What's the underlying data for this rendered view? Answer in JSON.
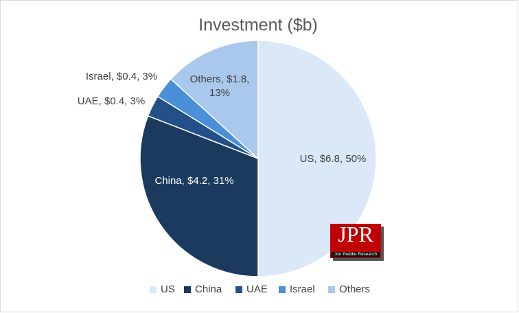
{
  "chart_data": {
    "type": "pie",
    "title": "Investment ($b)",
    "categories": [
      "US",
      "China",
      "UAE",
      "Israel",
      "Others"
    ],
    "values": [
      6.8,
      4.2,
      0.4,
      0.4,
      1.8
    ],
    "value_labels": [
      "US, $6.8, 50%",
      "China, $4.2, 31%",
      "UAE, $0.4, 3%",
      "Israel, $0.4, 3%",
      "Others, $1.8, 13%"
    ],
    "colors": [
      "#dae8f7",
      "#1b3a5e",
      "#24508a",
      "#4a90d9",
      "#a9c8ec"
    ],
    "legend": "bottom"
  },
  "logo": {
    "text": "JPR",
    "subtitle": "Jon Peddie Research"
  }
}
